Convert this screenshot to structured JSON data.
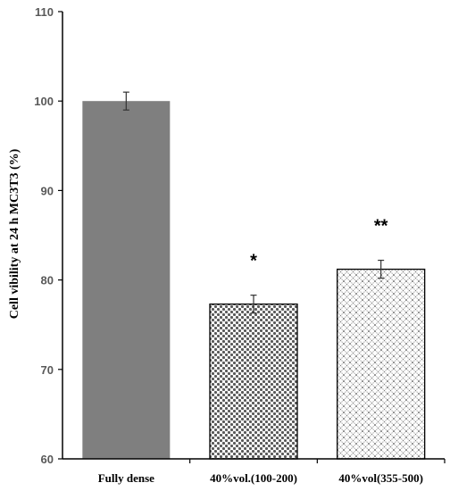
{
  "chart_data": {
    "type": "bar",
    "title": "",
    "xlabel": "",
    "ylabel": "Cell vibility at 24 h MC3T3 (%)",
    "ylim": [
      60,
      110
    ],
    "yticks": [
      60,
      70,
      80,
      90,
      100,
      110
    ],
    "categories": [
      "Fully dense",
      "40%vol.(100-200)",
      "40%vol(355-500)"
    ],
    "values": [
      100.0,
      77.3,
      81.2
    ],
    "errors": [
      1.0,
      1.0,
      1.0
    ],
    "significance": [
      "",
      "*",
      "**"
    ],
    "bar_fills": [
      "solid",
      "checker",
      "diagonal-cross"
    ],
    "grid": false,
    "legend": "none",
    "colors": {
      "solid_bar": "#7f7f7f",
      "pattern": "#595959",
      "axis": "#000000"
    }
  }
}
